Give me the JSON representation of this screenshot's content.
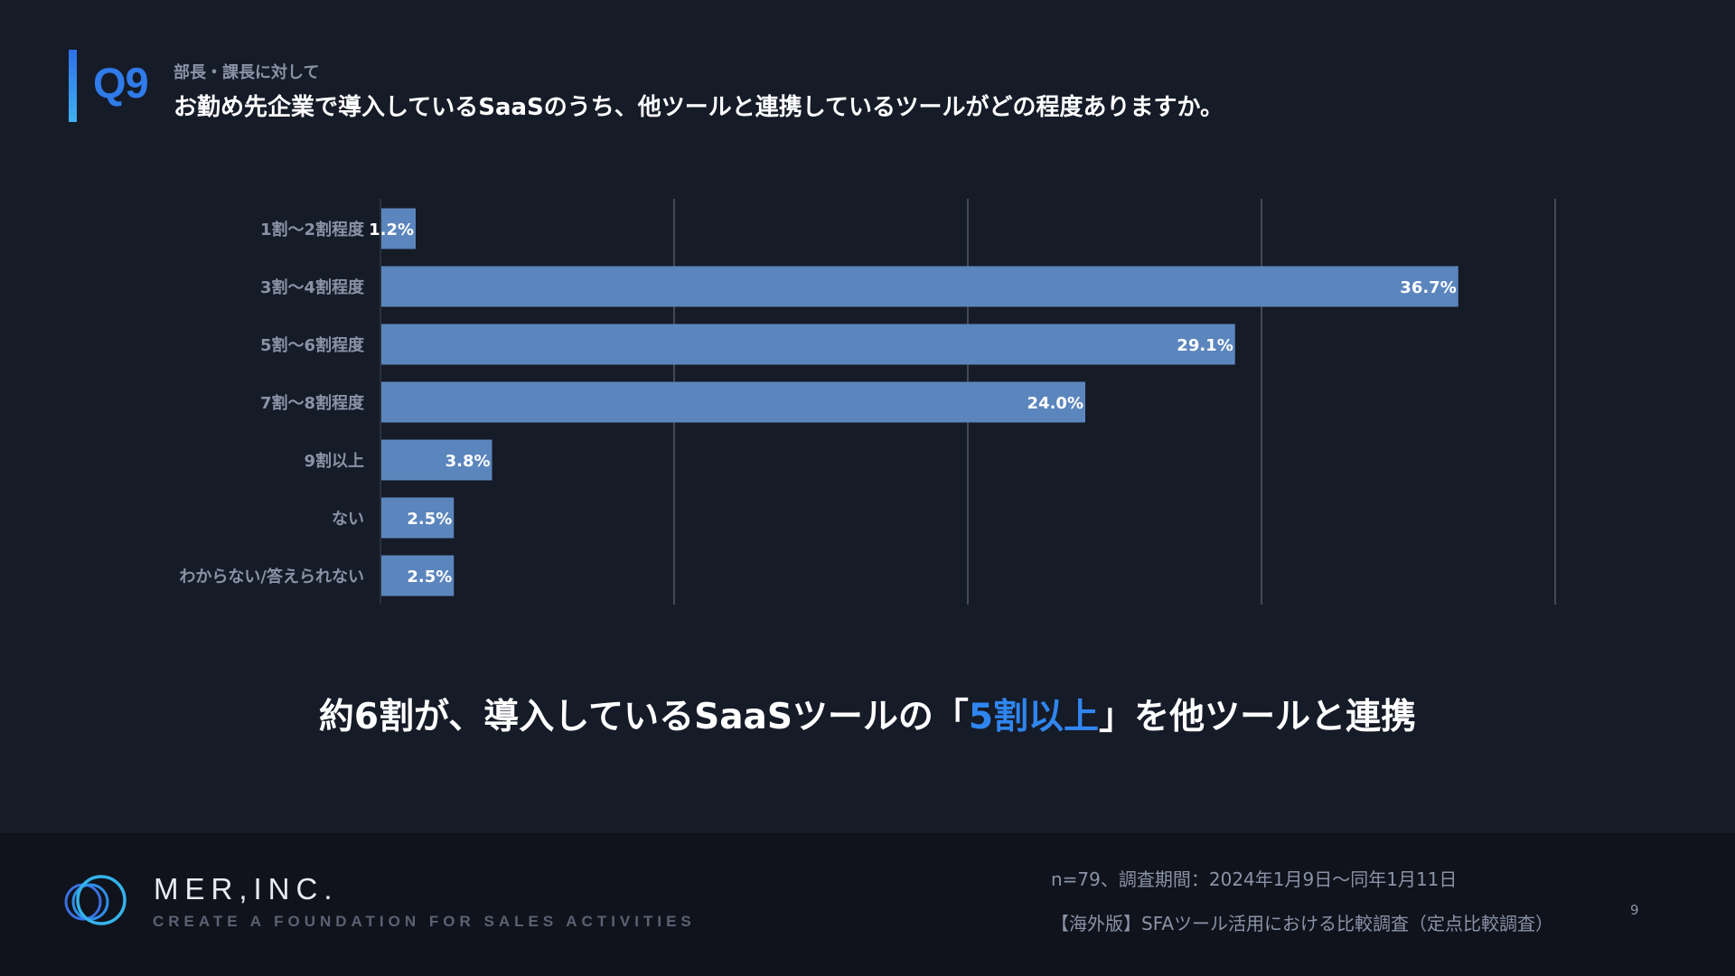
{
  "question": {
    "number": "Q9",
    "target": "部長・課長に対して",
    "text": "お勤め先企業で導入しているSaaSのうち、他ツールと連携しているツールがどの程度ありますか。"
  },
  "chart_data": {
    "type": "bar",
    "orientation": "horizontal",
    "categories": [
      "1割〜2割程度",
      "3割〜4割程度",
      "5割〜6割程度",
      "7割〜8割程度",
      "9割以上",
      "ない",
      "わからない/答えられない"
    ],
    "values": [
      1.2,
      36.7,
      29.1,
      24.0,
      3.8,
      2.5,
      2.5
    ],
    "value_labels": [
      "1.2%",
      "36.7%",
      "29.1%",
      "24.0%",
      "3.8%",
      "2.5%",
      "2.5%"
    ],
    "unit": "%",
    "xlim": [
      0,
      40
    ],
    "grid": true,
    "bar_color": "#5b85bd"
  },
  "headline": {
    "prefix": "約6割が、導入しているSaaSツールの「",
    "highlight": "5割以上",
    "suffix": "」を他ツールと連携",
    "highlight_color": "#2f86ef"
  },
  "footer": {
    "company_name": "MER,INC.",
    "tagline": "CREATE A FOUNDATION FOR SALES ACTIVITIES",
    "sample_info": "n=79、調査期間：2024年1月9日〜同年1月11日",
    "survey_title": "【海外版】SFAツール活用における比較調査（定点比較調査）",
    "page_number": "9"
  }
}
